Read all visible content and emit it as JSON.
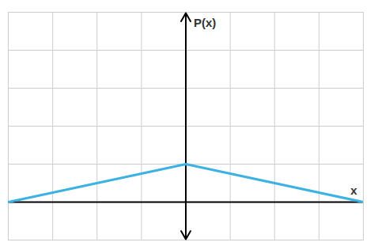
{
  "chart_data": {
    "type": "line",
    "x": [
      -4,
      0,
      4
    ],
    "values": [
      0,
      1,
      0
    ],
    "x_label": "x",
    "y_label": "P(x)",
    "color": "#3bb2e3",
    "xlim": [
      -4,
      4
    ],
    "ylim": [
      -1,
      5
    ],
    "xticks": [
      -4,
      -3,
      -2,
      -1,
      0,
      1,
      2,
      3,
      4
    ],
    "yticks": [
      -1,
      0,
      1,
      2,
      3,
      4,
      5
    ],
    "grid": true,
    "tick_labels": false
  }
}
